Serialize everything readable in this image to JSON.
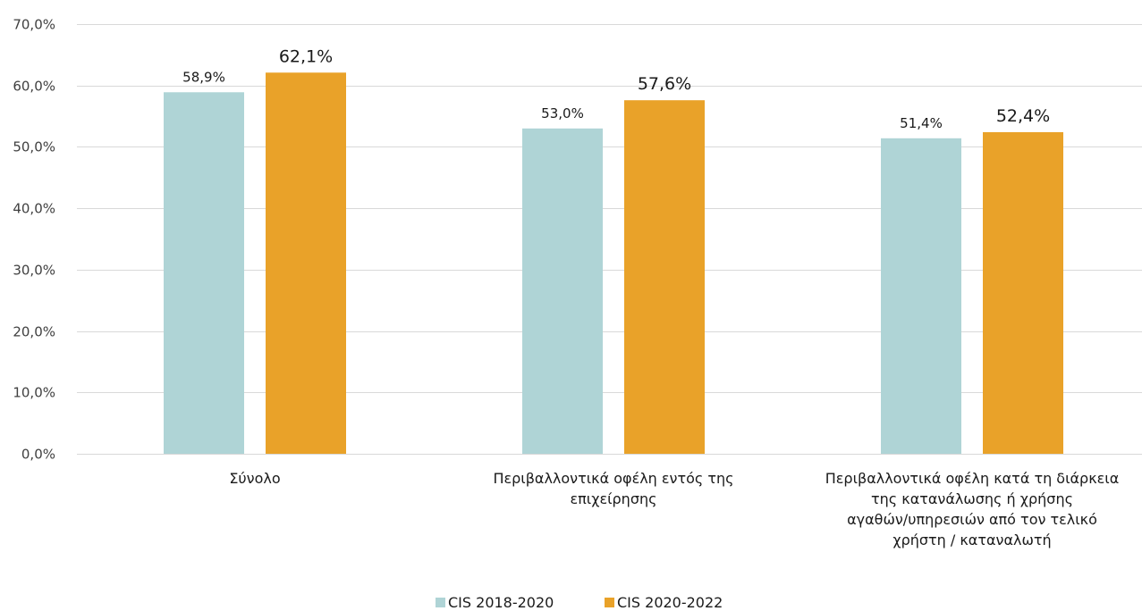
{
  "chart_data": {
    "type": "bar",
    "categories": [
      [
        "Σύνολο"
      ],
      [
        "Περιβαλλοντικά οφέλη εντός της",
        "επιχείρησης"
      ],
      [
        "Περιβαλλοντικά οφέλη κατά τη διάρκεια",
        "της κατανάλωσης ή χρήσης",
        "αγαθών/υπηρεσιών από τον τελικό",
        "χρήστη / καταναλωτή"
      ]
    ],
    "series": [
      {
        "name": "CIS 2018-2020",
        "color": "#afd4d6",
        "values": [
          58.9,
          53.0,
          51.4
        ],
        "labels": [
          "58,9%",
          "53,0%",
          "51,4%"
        ]
      },
      {
        "name": "CIS 2020-2022",
        "color": "#e9a229",
        "values": [
          62.1,
          57.6,
          52.4
        ],
        "labels": [
          "62,1%",
          "57,6%",
          "52,4%"
        ]
      }
    ],
    "yticks": [
      {
        "value": 0,
        "label": "0,0%"
      },
      {
        "value": 10,
        "label": "10,0%"
      },
      {
        "value": 20,
        "label": "20,0%"
      },
      {
        "value": 30,
        "label": "30,0%"
      },
      {
        "value": 40,
        "label": "40,0%"
      },
      {
        "value": 50,
        "label": "50,0%"
      },
      {
        "value": 60,
        "label": "60,0%"
      },
      {
        "value": 70,
        "label": "70,0%"
      }
    ],
    "ylim": [
      0,
      70
    ],
    "grid": true,
    "legend_position": "bottom-center",
    "gridline_color": "#d9d9d9",
    "title": "",
    "xlabel": "",
    "ylabel": ""
  }
}
